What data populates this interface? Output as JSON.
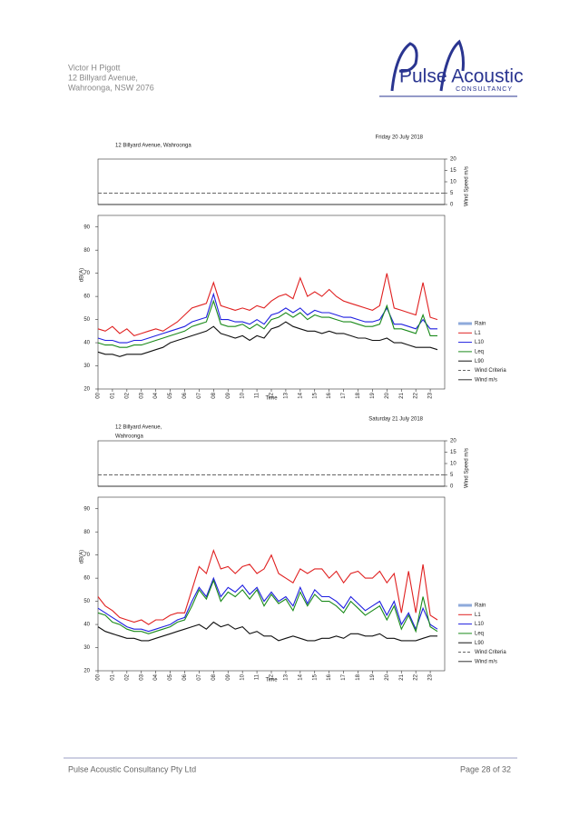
{
  "header": {
    "address": [
      "Victor H Pigott",
      "12 Billyard Avenue,",
      "Wahroonga, NSW 2076"
    ],
    "logo": "Pulse Acoustic",
    "logo_sub": "CONSULTANCY"
  },
  "footer": {
    "company": "Pulse Acoustic Consultancy Pty Ltd",
    "page": "Page 28 of 32"
  },
  "chart_data": [
    {
      "type": "line",
      "title": "Friday 20 July 2018",
      "subtitle": [
        "12 Billyard Avenue, Wahroonga"
      ],
      "x_label": "Time",
      "y_label": "dB(A)",
      "y2_label": "Wind Speed m/s",
      "xlim": [
        0,
        24
      ],
      "ylim": [
        20,
        95
      ],
      "y2lim": [
        0,
        20
      ],
      "xticks": [
        {
          "value": 0,
          "label": "00"
        },
        {
          "value": 1,
          "label": "01"
        },
        {
          "value": 2,
          "label": "02"
        },
        {
          "value": 3,
          "label": "03"
        },
        {
          "value": 4,
          "label": "04"
        },
        {
          "value": 5,
          "label": "05"
        },
        {
          "value": 6,
          "label": "06"
        },
        {
          "value": 7,
          "label": "07"
        },
        {
          "value": 8,
          "label": "08"
        },
        {
          "value": 9,
          "label": "09"
        },
        {
          "value": 10,
          "label": "10"
        },
        {
          "value": 11,
          "label": "11"
        },
        {
          "value": 12,
          "label": "12"
        },
        {
          "value": 13,
          "label": "13"
        },
        {
          "value": 14,
          "label": "14"
        },
        {
          "value": 15,
          "label": "15"
        },
        {
          "value": 16,
          "label": "16"
        },
        {
          "value": 17,
          "label": "17"
        },
        {
          "value": 18,
          "label": "18"
        },
        {
          "value": 19,
          "label": "19"
        },
        {
          "value": 20,
          "label": "20"
        },
        {
          "value": 21,
          "label": "21"
        },
        {
          "value": 22,
          "label": "22"
        },
        {
          "value": 23,
          "label": "23"
        }
      ],
      "yticks": [
        20,
        30,
        40,
        50,
        60,
        70,
        80,
        90
      ],
      "y2ticks": [
        0,
        5,
        10,
        15,
        20
      ],
      "x": [
        0,
        0.5,
        1,
        1.5,
        2,
        2.5,
        3,
        3.5,
        4,
        4.5,
        5,
        5.5,
        6,
        6.5,
        7,
        7.5,
        8,
        8.5,
        9,
        9.5,
        10,
        10.5,
        11,
        11.5,
        12,
        12.5,
        13,
        13.5,
        14,
        14.5,
        15,
        15.5,
        16,
        16.5,
        17,
        17.5,
        18,
        18.5,
        19,
        19.5,
        20,
        20.5,
        21,
        21.5,
        22,
        22.5,
        23,
        23.5
      ],
      "series": [
        {
          "name": "Rain",
          "color": "#8eaadb",
          "axis": "y2",
          "x": [
            0,
            24
          ],
          "values": [
            null,
            null
          ]
        },
        {
          "name": "L1",
          "color": "#e02020",
          "values": [
            46,
            45,
            47,
            44,
            46,
            43,
            44,
            45,
            46,
            45,
            47,
            49,
            52,
            55,
            56,
            57,
            66,
            56,
            55,
            54,
            55,
            54,
            56,
            55,
            58,
            60,
            61,
            59,
            68,
            60,
            62,
            60,
            63,
            60,
            58,
            57,
            56,
            55,
            54,
            56,
            70,
            55,
            54,
            53,
            52,
            66,
            51,
            50
          ]
        },
        {
          "name": "L10",
          "color": "#1f1fe0",
          "values": [
            42,
            41,
            41,
            40,
            40,
            41,
            41,
            42,
            43,
            44,
            45,
            46,
            47,
            49,
            50,
            51,
            61,
            50,
            50,
            49,
            49,
            48,
            50,
            48,
            52,
            53,
            55,
            53,
            55,
            52,
            54,
            53,
            53,
            52,
            51,
            51,
            50,
            49,
            49,
            50,
            55,
            48,
            48,
            47,
            46,
            50,
            46,
            46
          ]
        },
        {
          "name": "Leq",
          "color": "#1a8a1a",
          "values": [
            40,
            39,
            39,
            38,
            38,
            39,
            39,
            40,
            41,
            42,
            43,
            44,
            45,
            47,
            48,
            49,
            58,
            48,
            47,
            47,
            48,
            46,
            48,
            46,
            50,
            51,
            53,
            51,
            53,
            50,
            52,
            51,
            51,
            50,
            49,
            49,
            48,
            47,
            47,
            48,
            56,
            46,
            46,
            45,
            44,
            52,
            43,
            43
          ]
        },
        {
          "name": "L90",
          "color": "#101010",
          "values": [
            36,
            35,
            35,
            34,
            35,
            35,
            35,
            36,
            37,
            38,
            40,
            41,
            42,
            43,
            44,
            45,
            47,
            44,
            43,
            42,
            43,
            41,
            43,
            42,
            46,
            47,
            49,
            47,
            46,
            45,
            45,
            44,
            45,
            44,
            44,
            43,
            42,
            42,
            41,
            41,
            42,
            40,
            40,
            39,
            38,
            38,
            38,
            37
          ]
        },
        {
          "name": "Wind Criteria",
          "color": "#666666",
          "axis": "y2",
          "dashed": true,
          "x": [
            0,
            24
          ],
          "values": [
            5,
            5
          ]
        },
        {
          "name": "Wind m/s",
          "color": "#333333",
          "axis": "y2",
          "x": [
            0,
            24
          ],
          "values": [
            0,
            0
          ]
        }
      ]
    },
    {
      "type": "line",
      "title": "Saturday 21 July 2018",
      "subtitle": [
        "12 Billyard Avenue,",
        "Wahroonga"
      ],
      "x_label": "Time",
      "y_label": "dB(A)",
      "y2_label": "Wind Speed m/s",
      "xlim": [
        0,
        24
      ],
      "ylim": [
        20,
        95
      ],
      "y2lim": [
        0,
        20
      ],
      "xticks": [
        {
          "value": 0,
          "label": "00"
        },
        {
          "value": 1,
          "label": "01"
        },
        {
          "value": 2,
          "label": "02"
        },
        {
          "value": 3,
          "label": "03"
        },
        {
          "value": 4,
          "label": "04"
        },
        {
          "value": 5,
          "label": "05"
        },
        {
          "value": 6,
          "label": "06"
        },
        {
          "value": 7,
          "label": "07"
        },
        {
          "value": 8,
          "label": "08"
        },
        {
          "value": 9,
          "label": "09"
        },
        {
          "value": 10,
          "label": "10"
        },
        {
          "value": 11,
          "label": "11"
        },
        {
          "value": 12,
          "label": "12"
        },
        {
          "value": 13,
          "label": "13"
        },
        {
          "value": 14,
          "label": "14"
        },
        {
          "value": 15,
          "label": "15"
        },
        {
          "value": 16,
          "label": "16"
        },
        {
          "value": 17,
          "label": "17"
        },
        {
          "value": 18,
          "label": "18"
        },
        {
          "value": 19,
          "label": "19"
        },
        {
          "value": 20,
          "label": "20"
        },
        {
          "value": 21,
          "label": "21"
        },
        {
          "value": 22,
          "label": "22"
        },
        {
          "value": 23,
          "label": "23"
        }
      ],
      "yticks": [
        20,
        30,
        40,
        50,
        60,
        70,
        80,
        90
      ],
      "y2ticks": [
        0,
        5,
        10,
        15,
        20
      ],
      "x": [
        0,
        0.5,
        1,
        1.5,
        2,
        2.5,
        3,
        3.5,
        4,
        4.5,
        5,
        5.5,
        6,
        6.5,
        7,
        7.5,
        8,
        8.5,
        9,
        9.5,
        10,
        10.5,
        11,
        11.5,
        12,
        12.5,
        13,
        13.5,
        14,
        14.5,
        15,
        15.5,
        16,
        16.5,
        17,
        17.5,
        18,
        18.5,
        19,
        19.5,
        20,
        20.5,
        21,
        21.5,
        22,
        22.5,
        23,
        23.5
      ],
      "series": [
        {
          "name": "Rain",
          "color": "#8eaadb",
          "axis": "y2",
          "x": [
            0,
            24
          ],
          "values": [
            null,
            null
          ]
        },
        {
          "name": "L1",
          "color": "#e02020",
          "values": [
            52,
            48,
            46,
            43,
            42,
            41,
            42,
            40,
            42,
            42,
            44,
            45,
            45,
            55,
            65,
            62,
            72,
            64,
            65,
            62,
            65,
            66,
            62,
            64,
            70,
            62,
            60,
            58,
            64,
            62,
            64,
            64,
            60,
            63,
            58,
            62,
            63,
            60,
            60,
            63,
            58,
            62,
            45,
            63,
            45,
            66,
            44,
            42
          ]
        },
        {
          "name": "L10",
          "color": "#1f1fe0",
          "values": [
            47,
            45,
            43,
            41,
            39,
            38,
            38,
            37,
            38,
            39,
            40,
            42,
            43,
            50,
            56,
            52,
            60,
            52,
            56,
            54,
            57,
            53,
            56,
            50,
            54,
            50,
            52,
            48,
            56,
            49,
            55,
            52,
            52,
            50,
            47,
            52,
            49,
            46,
            48,
            50,
            44,
            50,
            40,
            45,
            38,
            47,
            40,
            38
          ]
        },
        {
          "name": "Leq",
          "color": "#1a8a1a",
          "values": [
            45,
            44,
            41,
            40,
            38,
            37,
            37,
            36,
            37,
            38,
            39,
            41,
            42,
            48,
            55,
            51,
            59,
            50,
            54,
            52,
            55,
            51,
            55,
            48,
            53,
            49,
            51,
            46,
            54,
            48,
            53,
            50,
            50,
            48,
            45,
            50,
            47,
            44,
            46,
            48,
            42,
            48,
            38,
            44,
            37,
            52,
            39,
            37
          ]
        },
        {
          "name": "L90",
          "color": "#101010",
          "values": [
            39,
            37,
            36,
            35,
            34,
            34,
            33,
            33,
            34,
            35,
            36,
            37,
            38,
            39,
            40,
            38,
            41,
            39,
            40,
            38,
            39,
            36,
            37,
            35,
            35,
            33,
            34,
            35,
            34,
            33,
            33,
            34,
            34,
            35,
            34,
            36,
            36,
            35,
            35,
            36,
            34,
            34,
            33,
            33,
            33,
            34,
            35,
            35
          ]
        },
        {
          "name": "Wind Criteria",
          "color": "#666666",
          "axis": "y2",
          "dashed": true,
          "x": [
            0,
            24
          ],
          "values": [
            5,
            5
          ]
        },
        {
          "name": "Wind m/s",
          "color": "#333333",
          "axis": "y2",
          "x": [
            0,
            24
          ],
          "values": [
            0,
            0
          ]
        }
      ]
    }
  ]
}
